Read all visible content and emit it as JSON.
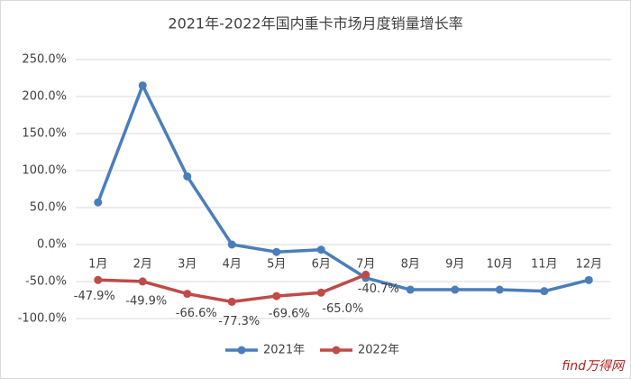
{
  "chart_data": {
    "type": "line",
    "title": "2021年-2022年国内重卡市场月度销量增长率",
    "categories": [
      "1月",
      "2月",
      "3月",
      "4月",
      "5月",
      "6月",
      "7月",
      "8月",
      "9月",
      "10月",
      "11月",
      "12月"
    ],
    "series": [
      {
        "name": "2021年",
        "color": "#4a7ebb",
        "values": [
          57,
          215,
          92,
          0,
          -10,
          -7,
          -45,
          -61,
          -61,
          -61,
          -63,
          -48
        ]
      },
      {
        "name": "2022年",
        "color": "#be4b48",
        "values": [
          -47.9,
          -49.9,
          -66.6,
          -77.3,
          -69.6,
          -65.0,
          -40.7,
          null,
          null,
          null,
          null,
          null
        ],
        "value_labels": [
          "-47.9%",
          "-49.9%",
          "-66.6%",
          "-77.3%",
          "-69.6%",
          "-65.0%",
          "-40.7%",
          null,
          null,
          null,
          null,
          null
        ]
      }
    ],
    "ylim": [
      -100,
      250
    ],
    "yticks": [
      {
        "value": -100,
        "label": "-100.0%"
      },
      {
        "value": -50,
        "label": "-50.0%"
      },
      {
        "value": 0,
        "label": "0.0%"
      },
      {
        "value": 50,
        "label": "50.0%"
      },
      {
        "value": 100,
        "label": "100.0%"
      },
      {
        "value": 150,
        "label": "150.0%"
      },
      {
        "value": 200,
        "label": "200.0%"
      },
      {
        "value": 250,
        "label": "250.0%"
      }
    ],
    "grid": true,
    "legend": "bottom",
    "watermark": "find万得网"
  }
}
